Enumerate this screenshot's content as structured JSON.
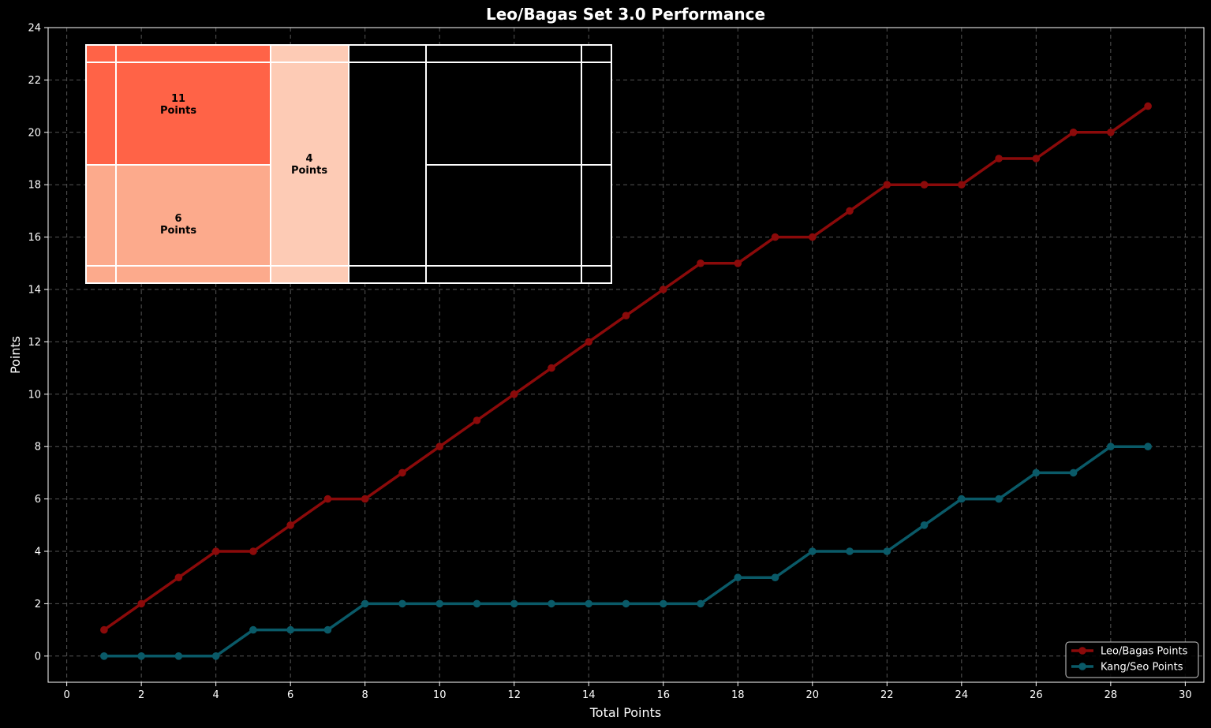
{
  "chart_data": {
    "type": "line",
    "title": "Leo/Bagas Set 3.0 Performance",
    "xlabel": "Total Points",
    "ylabel": "Points",
    "xlim": [
      -0.5,
      30.5
    ],
    "ylim": [
      -1,
      24
    ],
    "xticks": [
      0,
      2,
      4,
      6,
      8,
      10,
      12,
      14,
      16,
      18,
      20,
      22,
      24,
      26,
      28,
      30
    ],
    "yticks": [
      0,
      2,
      4,
      6,
      8,
      10,
      12,
      14,
      16,
      18,
      20,
      22,
      24
    ],
    "grid": true,
    "legend_position": "bottom-right",
    "x": [
      1,
      2,
      3,
      4,
      5,
      6,
      7,
      8,
      9,
      10,
      11,
      12,
      13,
      14,
      15,
      16,
      17,
      18,
      19,
      20,
      21,
      22,
      23,
      24,
      25,
      26,
      27,
      28,
      29
    ],
    "series": [
      {
        "name": "Leo/Bagas Points",
        "color": "#8b0a0a",
        "values": [
          1,
          2,
          3,
          4,
          4,
          5,
          6,
          6,
          7,
          8,
          9,
          10,
          11,
          12,
          13,
          14,
          15,
          15,
          16,
          16,
          17,
          18,
          18,
          18,
          19,
          19,
          20,
          20,
          21
        ]
      },
      {
        "name": "Kang/Seo Points",
        "color": "#0a5a68",
        "values": [
          0,
          0,
          0,
          0,
          1,
          1,
          1,
          2,
          2,
          2,
          2,
          2,
          2,
          2,
          2,
          2,
          2,
          3,
          3,
          4,
          4,
          4,
          5,
          6,
          6,
          7,
          7,
          8,
          8
        ]
      }
    ],
    "inset_court": {
      "zones": [
        {
          "label": "11\nPoints",
          "value": 11,
          "color": "#ff6347"
        },
        {
          "label": "6\nPoints",
          "value": 6,
          "color": "#fcaa8c"
        },
        {
          "label": "4\nPoints",
          "value": 4,
          "color": "#fdcbb5"
        }
      ],
      "line_color": "#ffffff"
    }
  }
}
